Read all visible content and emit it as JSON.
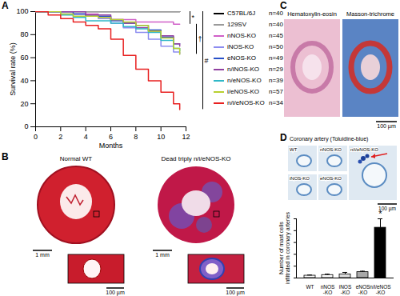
{
  "figure": {
    "panels": [
      {
        "letter": "A"
      },
      {
        "letter": "B",
        "images": [
          {
            "label": "Normal WT",
            "scale_bars": [
              "1 mm",
              "100 µm"
            ]
          },
          {
            "label": "Dead triply n/i/eNOS-KO",
            "scale_bars": [
              "1 mm",
              "100 µm"
            ]
          }
        ]
      },
      {
        "letter": "C",
        "images": [
          {
            "label": "Hematoxylin-eosin"
          },
          {
            "label": "Masson-trichrome"
          }
        ],
        "scale_bar": "100 µm"
      },
      {
        "letter": "D",
        "title": "Coronary artery (Toluidine-blue)",
        "images": [
          {
            "label": "WT"
          },
          {
            "label": "nNOS-KO"
          },
          {
            "label": "n/i/eNOS-KO"
          },
          {
            "label": "iNOS-KO"
          },
          {
            "label": "eNOS-KO"
          }
        ],
        "scale_bar": "100 µm"
      }
    ]
  },
  "chart_data": [
    {
      "type": "line",
      "line_style": "step",
      "legend": "right",
      "xlabel": "Months",
      "ylabel": "Survival rate (%)",
      "x": [
        0,
        1,
        2,
        3,
        4,
        5,
        6,
        7,
        8,
        9,
        10,
        11,
        11.5
      ],
      "xlim": [
        0,
        12
      ],
      "xticks": [
        0,
        2,
        4,
        6,
        8,
        10,
        12
      ],
      "ylim": [
        0,
        100
      ],
      "yticks": [
        0,
        20,
        40,
        60,
        80,
        100
      ],
      "series": [
        {
          "name": "C57BL/6J",
          "n_label": "n=40",
          "color": "#000000",
          "values": [
            100,
            100,
            100,
            100,
            100,
            100,
            100,
            100,
            100,
            100,
            100,
            100,
            100
          ]
        },
        {
          "name": "129SV",
          "n_label": "n=40",
          "color": "#9a9a9a",
          "values": [
            100,
            100,
            100,
            100,
            100,
            100,
            100,
            100,
            100,
            100,
            100,
            100,
            100
          ]
        },
        {
          "name": "nNOS-KO",
          "n_label": "n=45",
          "color": "#d060c8",
          "values": [
            100,
            100,
            100,
            98,
            98,
            95,
            93,
            93,
            91,
            91,
            91,
            89,
            89
          ]
        },
        {
          "name": "iNOS-KO",
          "n_label": "n=50",
          "color": "#8c8cf0",
          "values": [
            100,
            100,
            98,
            98,
            96,
            94,
            90,
            86,
            82,
            76,
            70,
            65,
            63
          ]
        },
        {
          "name": "eNOS-KO",
          "n_label": "n=49",
          "color": "#2850c8",
          "values": [
            100,
            100,
            100,
            98,
            96,
            96,
            92,
            90,
            88,
            84,
            78,
            72,
            72
          ]
        },
        {
          "name": "n/iNOS-KO",
          "n_label": "n=29",
          "color": "#9040a0",
          "values": [
            100,
            100,
            100,
            100,
            97,
            97,
            93,
            90,
            86,
            83,
            79,
            72,
            70
          ]
        },
        {
          "name": "n/eNOS-KO",
          "n_label": "n=39",
          "color": "#30b8c8",
          "values": [
            100,
            100,
            97,
            95,
            92,
            92,
            90,
            87,
            85,
            82,
            75,
            68,
            66
          ]
        },
        {
          "name": "i/eNOS-KO",
          "n_label": "n=57",
          "color": "#b8d030",
          "values": [
            100,
            100,
            98,
            96,
            96,
            95,
            93,
            91,
            88,
            83,
            77,
            68,
            63
          ]
        },
        {
          "name": "n/i/eNOS-KO",
          "n_label": "n=34",
          "color": "#e82020",
          "values": [
            100,
            97,
            94,
            91,
            88,
            85,
            76,
            62,
            50,
            40,
            30,
            20,
            15
          ]
        }
      ],
      "annotations": [
        {
          "text": "*",
          "y_range": [
            100,
            89
          ]
        },
        {
          "text": "†",
          "y_range": [
            89,
            63
          ]
        },
        {
          "text": "#",
          "y_range": [
            100,
            15
          ]
        }
      ]
    },
    {
      "type": "bar",
      "tick_labels": "x",
      "ylabel": "Number of mast cells infiltrated in coronary arteries",
      "categories": [
        "WT",
        "nNOS-KO",
        "iNOS-KO",
        "eNOS-KO",
        "n/i/eNOS-KO"
      ],
      "values": [
        0.4,
        0.5,
        0.6,
        1.0,
        8.5
      ],
      "errors": [
        0.1,
        0.15,
        0.35,
        0.15,
        1.5
      ],
      "colors": [
        "#ffffff",
        "#ffffff",
        "#dddddd",
        "#a8a8a8",
        "#000000"
      ],
      "ylim": [
        0,
        10
      ],
      "yticks": [
        0,
        2,
        4,
        6,
        8,
        10
      ],
      "annotations": [
        {
          "text": "*",
          "category": "n/i/eNOS-KO"
        }
      ]
    }
  ]
}
